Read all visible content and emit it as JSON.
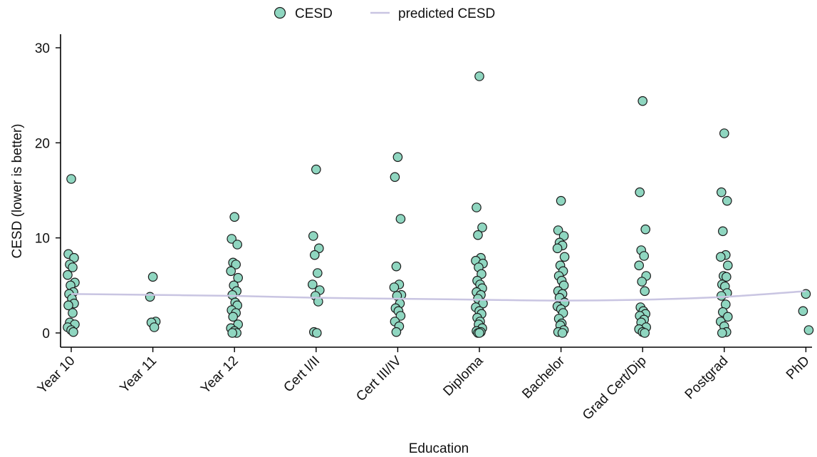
{
  "chart_data": {
    "type": "scatter",
    "xlabel": "Education",
    "ylabel": "CESD (lower is better)",
    "ylim": [
      -1.5,
      31
    ],
    "yticks": [
      0,
      10,
      20,
      30
    ],
    "grid": false,
    "legend_position": "top",
    "categories": [
      "Year 10",
      "Year 11",
      "Year 12",
      "Cert I/II",
      "Cert III/IV",
      "Diploma",
      "Bachelor",
      "Grad Cert/Dip",
      "Postgrad",
      "PhD"
    ],
    "colors": {
      "points": "#8fd6c0",
      "point_edge": "#1a1a1a",
      "line": "#c9c5e2"
    },
    "series": [
      {
        "name": "CESD",
        "kind": "points",
        "groups": [
          [
            16.2,
            8.3,
            7.9,
            7.2,
            6.9,
            6.1,
            5.3,
            5.0,
            4.3,
            4.1,
            3.6,
            3.1,
            2.9,
            2.1,
            1.1,
            0.9,
            0.6,
            0.3,
            0.1
          ],
          [
            5.9,
            3.8,
            1.2,
            1.1,
            0.6
          ],
          [
            12.2,
            9.9,
            9.3,
            7.4,
            7.2,
            6.5,
            5.8,
            5.0,
            4.4,
            4.0,
            3.2,
            2.9,
            2.4,
            2.1,
            1.7,
            0.9,
            0.5,
            0.2,
            0.0,
            0.0
          ],
          [
            17.2,
            10.2,
            8.9,
            8.2,
            6.3,
            5.1,
            4.5,
            3.9,
            3.3,
            0.1,
            0.0
          ],
          [
            18.5,
            16.4,
            12.0,
            7.0,
            5.1,
            4.8,
            4.0,
            3.9,
            3.1,
            2.6,
            2.3,
            1.8,
            1.2,
            0.7,
            0.1
          ],
          [
            27.0,
            13.2,
            11.1,
            10.3,
            7.9,
            7.6,
            7.3,
            6.9,
            6.2,
            5.5,
            5.1,
            4.7,
            4.3,
            4.0,
            3.6,
            3.1,
            2.7,
            2.3,
            2.0,
            1.6,
            1.2,
            0.9,
            0.5,
            0.2,
            0.1,
            0.0,
            0.0
          ],
          [
            13.9,
            10.8,
            10.2,
            9.5,
            9.2,
            8.9,
            8.0,
            7.1,
            6.5,
            6.0,
            5.5,
            5.0,
            4.4,
            4.1,
            3.7,
            3.2,
            2.8,
            2.5,
            2.1,
            1.5,
            1.0,
            0.8,
            0.3,
            0.1,
            0.0
          ],
          [
            24.4,
            14.8,
            10.9,
            8.7,
            8.1,
            7.1,
            6.0,
            5.4,
            4.4,
            2.7,
            2.3,
            2.0,
            1.8,
            1.4,
            1.1,
            0.6,
            0.4,
            0.1,
            0.0
          ],
          [
            21.0,
            14.8,
            13.9,
            10.7,
            8.2,
            8.0,
            7.1,
            6.0,
            5.9,
            5.1,
            4.9,
            4.2,
            3.9,
            3.0,
            2.2,
            1.7,
            1.2,
            0.7,
            0.1,
            0.0
          ],
          [
            4.1,
            2.3,
            0.3
          ]
        ]
      },
      {
        "name": "predicted CESD",
        "kind": "line",
        "values": [
          4.1,
          4.0,
          3.9,
          3.7,
          3.6,
          3.5,
          3.4,
          3.5,
          3.8,
          4.4
        ]
      }
    ]
  }
}
